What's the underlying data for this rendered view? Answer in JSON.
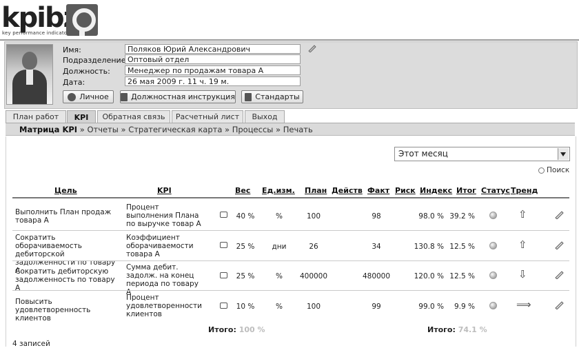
{
  "logo": {
    "text": "kpibz",
    "tagline": "key performance indicator"
  },
  "profile": {
    "name_label": "Имя:",
    "name": "Поляков Юрий Александрович",
    "dept_label": "Подразделение:",
    "dept": "Оптовый отдел",
    "position_label": "Должность:",
    "position": "Менеджер по продажам товара А",
    "date_label": "Дата:",
    "date": "26 мая 2009 г. 11 ч. 19 м."
  },
  "buttons": {
    "personal": "Личное",
    "instruction": "Должностная инструкция",
    "standards": "Стандарты"
  },
  "tabs": [
    "План работ",
    "KPI",
    "Обратная связь",
    "Расчетный лист",
    "Выход"
  ],
  "active_tab": "KPI",
  "breadcrumb": {
    "current": "Матрица KPI",
    "sep": "»",
    "items": [
      "Отчеты",
      "Стратегическая карта",
      "Процессы",
      "Печать"
    ]
  },
  "period": {
    "selected": "Этот месяц"
  },
  "search_label": "Поиск",
  "columns": [
    "Цель",
    "KPI",
    "Вес",
    "Ед.изм.",
    "План",
    "Действ",
    "Факт",
    "Риск",
    "Индекс",
    "Итог",
    "Статус",
    "Тренд"
  ],
  "rows": [
    {
      "goal": "Выполнить План продаж товара А",
      "kpi": "Процент выполнения Плана по выручке товар А",
      "weight": "40 %",
      "unit": "%",
      "plan": "100",
      "fact": "98",
      "index": "98.0 %",
      "total": "39.2 %",
      "trend": "up-arrow-icon"
    },
    {
      "goal": "Сократить оборачиваемость дебиторской задолженности по товару А",
      "kpi": "Коэффициент оборачиваемости товара А",
      "weight": "25 %",
      "unit": "дни",
      "plan": "26",
      "fact": "34",
      "index": "130.8 %",
      "total": "12.5 %",
      "trend": "up-arrow-icon"
    },
    {
      "goal": "Сократить дебиторскую задолженность по товару А",
      "kpi": "Сумма дебит. задолж. на конец периода по товару А",
      "weight": "25 %",
      "unit": "%",
      "plan": "400000",
      "fact": "480000",
      "index": "120.0 %",
      "total": "12.5 %",
      "trend": "down-arrow-icon"
    },
    {
      "goal": "Повысить удовлетворенность клиентов",
      "kpi": "Процент удовлетворенности клиентов",
      "weight": "10 %",
      "unit": "%",
      "plan": "100",
      "fact": "99",
      "index": "99.0 %",
      "total": "9.9 %",
      "trend": "right-arrow-icon"
    }
  ],
  "totals": {
    "label": "Итого:",
    "weight": "100 %",
    "total": "74.1 %"
  },
  "records": "4 записей"
}
